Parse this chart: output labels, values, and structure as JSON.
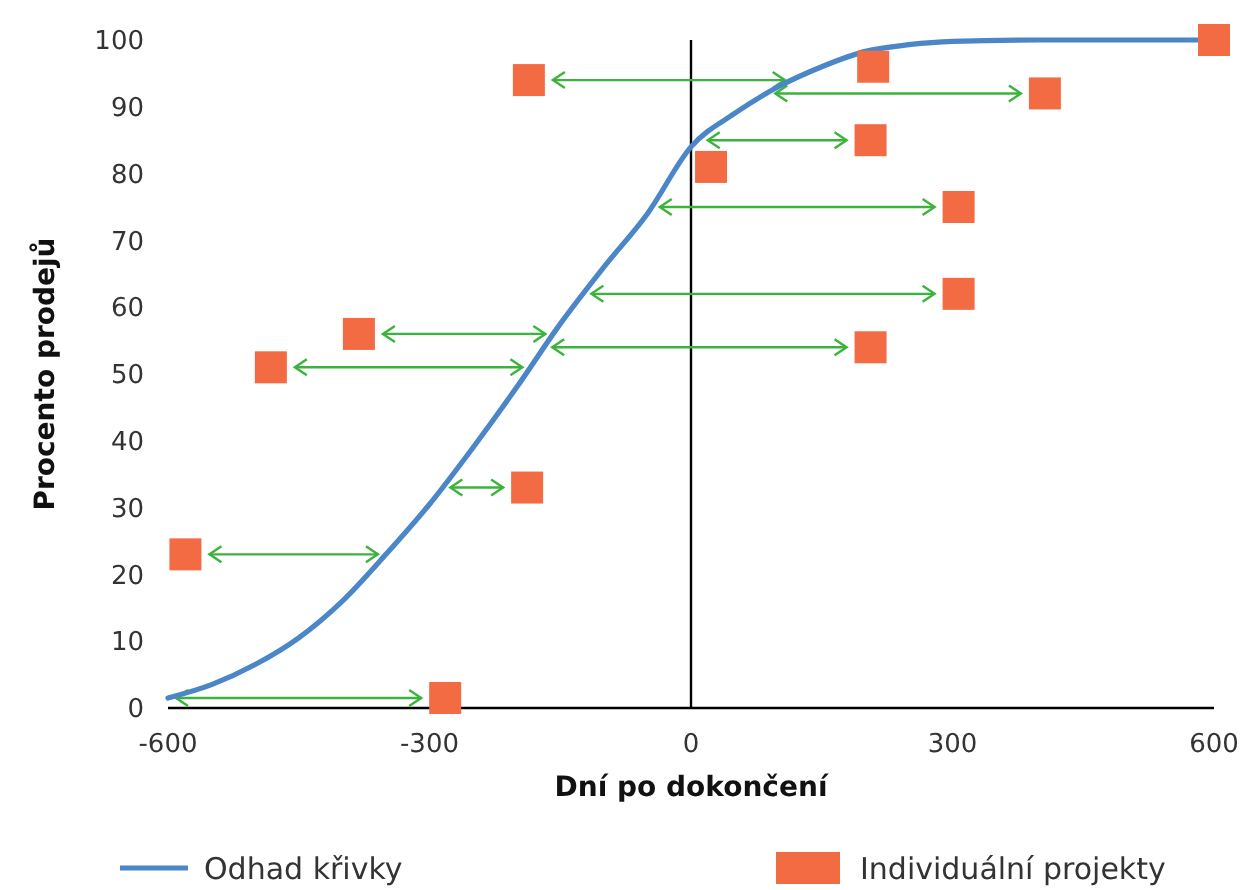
{
  "chart_data": {
    "type": "scatter",
    "xlabel": "Dní po dokončení",
    "ylabel": "Procento prodejů",
    "xlim": [
      -600,
      600
    ],
    "xticks": [
      -600,
      -300,
      0,
      300,
      600
    ],
    "ylim": [
      0,
      100
    ],
    "yticks": [
      0,
      10,
      20,
      30,
      40,
      50,
      60,
      70,
      80,
      90,
      100
    ],
    "legend": "bottom",
    "series": [
      {
        "name": "Odhad křivky",
        "type": "line",
        "color": "#4a86c8",
        "marker": "none",
        "line_style": "solid",
        "x": [
          -600,
          -550,
          -500,
          -450,
          -400,
          -350,
          -300,
          -250,
          -200,
          -150,
          -100,
          -50,
          0,
          50,
          100,
          150,
          200,
          250,
          300,
          400,
          500,
          600
        ],
        "values": [
          1.5,
          3.5,
          6.5,
          10.5,
          16,
          23,
          30.5,
          39,
          48,
          57.5,
          66,
          74,
          84,
          89,
          93,
          96,
          98.3,
          99.3,
          99.8,
          100,
          100,
          100
        ]
      },
      {
        "name": "Individuální projekty",
        "color": "#f26b43",
        "marker": "square",
        "x": [
          -580,
          -482,
          -381,
          -282,
          -188,
          -186,
          23,
          206,
          209,
          206,
          307,
          307,
          406,
          600
        ],
        "values": [
          23,
          51,
          56,
          1.5,
          33,
          94,
          81,
          85,
          96,
          54,
          62,
          75,
          92,
          100
        ]
      }
    ]
  }
}
